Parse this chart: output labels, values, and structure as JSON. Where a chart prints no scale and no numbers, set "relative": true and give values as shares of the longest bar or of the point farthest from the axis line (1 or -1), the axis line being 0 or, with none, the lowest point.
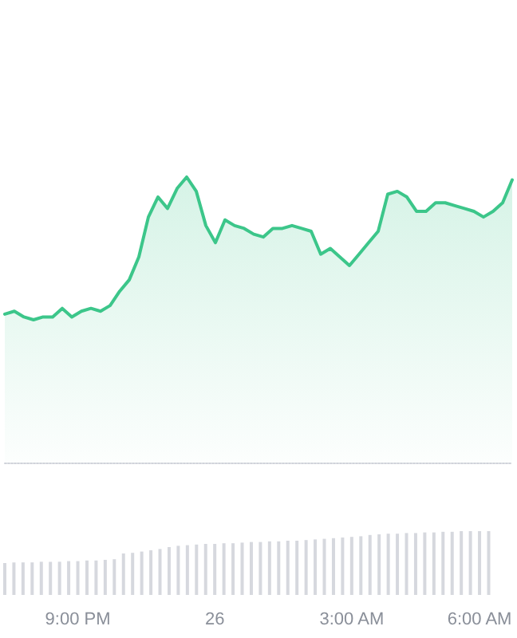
{
  "chart_data": [
    {
      "type": "area",
      "relative": true,
      "color": "#3cc68a",
      "categories": [
        null,
        null,
        null,
        null,
        null,
        null,
        null,
        null,
        null,
        null,
        null,
        null,
        null,
        null,
        null,
        null,
        null,
        null,
        null,
        null,
        null,
        null,
        null,
        null,
        null,
        null,
        null,
        null,
        null,
        null,
        null,
        null,
        null,
        null,
        null,
        null,
        null,
        null,
        null,
        null,
        null,
        null,
        null,
        null,
        null,
        null,
        null,
        null,
        null,
        null,
        null,
        null,
        null,
        null
      ],
      "values": [
        0.52,
        0.53,
        0.51,
        0.5,
        0.51,
        0.51,
        0.54,
        0.51,
        0.53,
        0.54,
        0.53,
        0.55,
        0.6,
        0.64,
        0.72,
        0.86,
        0.93,
        0.89,
        0.96,
        1,
        0.95,
        0.83,
        0.77,
        0.85,
        0.83,
        0.82,
        0.8,
        0.79,
        0.82,
        0.82,
        0.83,
        0.82,
        0.81,
        0.73,
        0.75,
        0.72,
        0.69,
        0.73,
        0.77,
        0.81,
        0.94,
        0.95,
        0.93,
        0.88,
        0.88,
        0.91,
        0.91,
        0.9,
        0.89,
        0.88,
        0.86,
        0.88,
        0.91,
        0.99
      ]
    },
    {
      "type": "bar",
      "relative": true,
      "color": "#d6d8de",
      "categories": [
        null,
        null,
        null,
        null,
        null,
        null,
        null,
        null,
        "9:00 PM",
        null,
        null,
        null,
        null,
        null,
        null,
        null,
        null,
        null,
        null,
        null,
        null,
        null,
        null,
        "26",
        null,
        null,
        null,
        null,
        null,
        null,
        null,
        null,
        null,
        null,
        null,
        null,
        null,
        null,
        "3:00 AM",
        null,
        null,
        null,
        null,
        null,
        null,
        null,
        null,
        null,
        null,
        null,
        null,
        null,
        "6:00 AM",
        null
      ],
      "values": [
        0.5,
        0.51,
        0.51,
        0.51,
        0.52,
        0.52,
        0.52,
        0.53,
        0.53,
        0.54,
        0.54,
        0.55,
        0.56,
        0.65,
        0.66,
        0.68,
        0.7,
        0.72,
        0.75,
        0.77,
        0.78,
        0.79,
        0.8,
        0.8,
        0.81,
        0.81,
        0.82,
        0.83,
        0.83,
        0.84,
        0.84,
        0.85,
        0.85,
        0.86,
        0.87,
        0.88,
        0.89,
        0.9,
        0.91,
        0.92,
        0.94,
        0.95,
        0.96,
        0.96,
        0.97,
        0.97,
        0.98,
        0.98,
        0.99,
        0.99,
        1,
        1,
        1,
        1
      ]
    }
  ]
}
